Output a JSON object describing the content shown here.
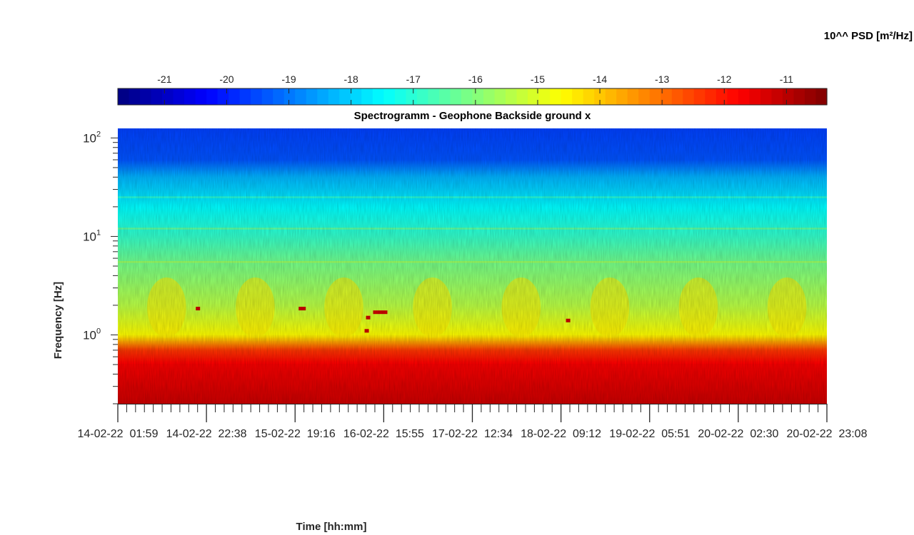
{
  "chart_data": {
    "type": "heatmap",
    "title": "Spectrogramm - Geophone Backside ground x",
    "xlabel": "Time [hh:mm]",
    "ylabel": "Frequency [Hz]",
    "x_tick_labels": [
      "14-02-22  01:59",
      "14-02-22  22:38",
      "15-02-22  19:16",
      "16-02-22  15:55",
      "17-02-22  12:34",
      "18-02-22  09:12",
      "19-02-22  05:51",
      "20-02-22  02:30",
      "20-02-22  23:08"
    ],
    "y_scale": "log",
    "y_range": [
      0.2,
      125
    ],
    "y_ticks": [
      1,
      10,
      100
    ],
    "y_tick_labels": [
      {
        "base": "10",
        "exp": "0"
      },
      {
        "base": "10",
        "exp": "1"
      },
      {
        "base": "10",
        "exp": "2"
      }
    ],
    "colorbar": {
      "title": "10^^ PSD [m²/Hz]",
      "colormap": "jet",
      "range": [
        -21.75,
        -10.35
      ],
      "ticks": [
        -21,
        -20,
        -19,
        -18,
        -17,
        -16,
        -15,
        -14,
        -13,
        -12,
        -11
      ],
      "tick_labels": [
        "-21",
        "-20",
        "-19",
        "-18",
        "-17",
        "-16",
        "-15",
        "-14",
        "-13",
        "-12",
        "-11"
      ],
      "position": "top"
    },
    "psd_profile_by_frequency": [
      {
        "freq_hz": 0.2,
        "log10_psd": -11.2
      },
      {
        "freq_hz": 0.5,
        "log10_psd": -11.7
      },
      {
        "freq_hz": 0.7,
        "log10_psd": -12.4
      },
      {
        "freq_hz": 1.0,
        "log10_psd": -14.6
      },
      {
        "freq_hz": 2.0,
        "log10_psd": -15.4
      },
      {
        "freq_hz": 5.0,
        "log10_psd": -16.1
      },
      {
        "freq_hz": 10,
        "log10_psd": -16.9
      },
      {
        "freq_hz": 20,
        "log10_psd": -17.5
      },
      {
        "freq_hz": 40,
        "log10_psd": -18.3
      },
      {
        "freq_hz": 60,
        "log10_psd": -19.4
      },
      {
        "freq_hz": 125,
        "log10_psd": -19.6
      }
    ],
    "noted_features": [
      "horizontal band near 12 Hz",
      "horizontal band near 5.5 Hz",
      "horizontal band near 25 Hz",
      "daily activity bursts between 1 Hz and 4 Hz",
      "isolated high-PSD spots near 1.2-1.8 Hz"
    ]
  }
}
